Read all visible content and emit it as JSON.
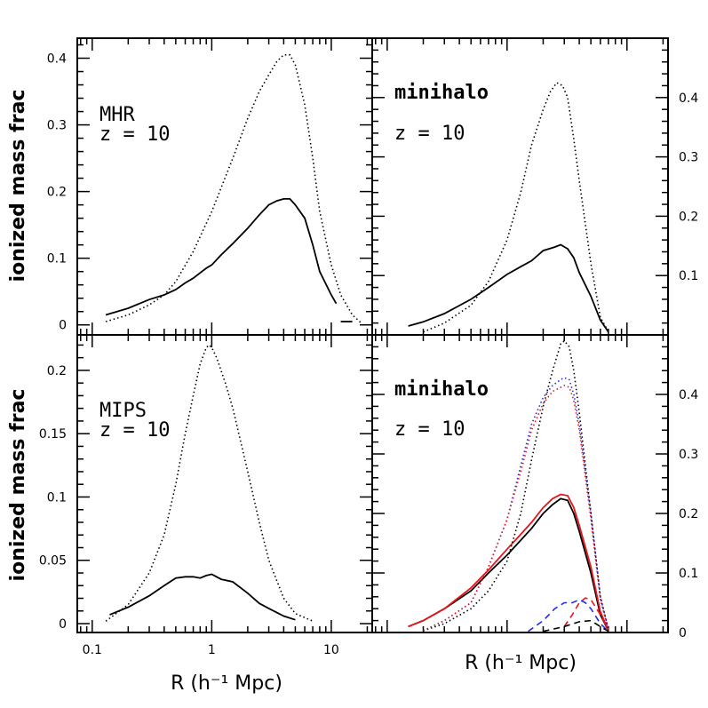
{
  "figure": {
    "ylabel_top": "ionized mass frac",
    "ylabel_bottom": "ionized mass frac",
    "xlabel_left": "R (h⁻¹ Mpc)",
    "xlabel_right": "R (h⁻¹ Mpc)"
  },
  "colors": {
    "black": "#000000",
    "red": "#e8141b",
    "blue": "#1f2be8"
  },
  "chart_data": [
    {
      "panel": "top-left",
      "type": "line",
      "label_line1": "MHR",
      "label_line2": "z = 10",
      "label_color": "#000000",
      "xscale": "log",
      "xlim": [
        0.075,
        22
      ],
      "ylim": [
        -0.015,
        0.43
      ],
      "yticks": [
        0,
        0.1,
        0.2,
        0.3,
        0.4
      ],
      "ytick_labels": [
        "0",
        "0.1",
        "0.2",
        "0.3",
        "0.4"
      ],
      "ytick_side": "left",
      "series": [
        {
          "style": "solid",
          "color": "#000000",
          "x": [
            0.13,
            0.2,
            0.3,
            0.4,
            0.5,
            0.6,
            0.7,
            0.8,
            0.9,
            1.0,
            1.2,
            1.5,
            2.0,
            2.5,
            3.0,
            3.5,
            4.0,
            4.5,
            5.0,
            6.0,
            7.0,
            8.0,
            10.0,
            11.0
          ],
          "y": [
            0.015,
            0.025,
            0.038,
            0.045,
            0.053,
            0.063,
            0.07,
            0.078,
            0.085,
            0.09,
            0.105,
            0.122,
            0.145,
            0.165,
            0.18,
            0.186,
            0.189,
            0.189,
            0.18,
            0.16,
            0.12,
            0.08,
            0.045,
            0.032
          ]
        },
        {
          "style": "solid",
          "color": "#000000",
          "x": [
            12.0,
            15.0
          ],
          "y": [
            0.005,
            0.005
          ]
        },
        {
          "style": "dotted",
          "color": "#000000",
          "x": [
            0.13,
            0.2,
            0.3,
            0.4,
            0.5,
            0.7,
            1.0,
            1.5,
            2.0,
            2.5,
            3.0,
            3.5,
            4.0,
            4.5,
            5.0,
            6.0,
            7.0,
            8.0,
            10.0,
            12.0,
            15.0,
            18.0
          ],
          "y": [
            0.005,
            0.015,
            0.03,
            0.045,
            0.065,
            0.11,
            0.17,
            0.25,
            0.31,
            0.35,
            0.375,
            0.395,
            0.405,
            0.405,
            0.39,
            0.33,
            0.25,
            0.17,
            0.09,
            0.045,
            0.015,
            0.002
          ]
        }
      ]
    },
    {
      "panel": "top-right",
      "type": "line",
      "label_line1": "minihalo",
      "label_line2": "z = 10",
      "label_color": "#000000",
      "xscale": "log",
      "xlim": [
        0.075,
        22
      ],
      "ylim": [
        0,
        0.5
      ],
      "yticks": [
        0.1,
        0.2,
        0.3,
        0.4
      ],
      "ytick_labels": [
        "0.1",
        "0.2",
        "0.3",
        "0.4"
      ],
      "ytick_side": "right",
      "series": [
        {
          "style": "solid",
          "color": "#000000",
          "x": [
            0.15,
            0.2,
            0.3,
            0.5,
            0.7,
            1.0,
            1.3,
            1.6,
            2.0,
            2.5,
            2.8,
            3.2,
            3.6,
            4.0,
            5.0,
            6.0,
            7.0
          ],
          "y": [
            0.015,
            0.022,
            0.036,
            0.06,
            0.08,
            0.102,
            0.115,
            0.125,
            0.142,
            0.148,
            0.152,
            0.145,
            0.13,
            0.105,
            0.065,
            0.025,
            0.005
          ]
        },
        {
          "style": "dotted",
          "color": "#000000",
          "x": [
            0.2,
            0.3,
            0.5,
            0.7,
            1.0,
            1.3,
            1.6,
            2.0,
            2.3,
            2.6,
            2.9,
            3.2,
            3.6,
            4.0,
            5.0,
            6.0,
            7.0
          ],
          "y": [
            0.005,
            0.02,
            0.05,
            0.09,
            0.16,
            0.24,
            0.32,
            0.38,
            0.41,
            0.425,
            0.42,
            0.4,
            0.33,
            0.26,
            0.12,
            0.03,
            0.005
          ]
        }
      ]
    },
    {
      "panel": "bottom-left",
      "type": "line",
      "label_line1": "MIPS",
      "label_line2": "z = 10",
      "label_color": "#000000",
      "xscale": "log",
      "xlim": [
        0.075,
        22
      ],
      "ylim": [
        -0.007,
        0.228
      ],
      "yticks": [
        0,
        0.05,
        0.1,
        0.15,
        0.2
      ],
      "ytick_labels": [
        "0",
        "0.05",
        "0.1",
        "0.15",
        "0.2"
      ],
      "ytick_side": "left",
      "xticks": [
        0.1,
        1,
        10
      ],
      "xtick_labels": [
        "0.1",
        "1",
        "10"
      ],
      "series": [
        {
          "style": "solid",
          "color": "#000000",
          "x": [
            0.14,
            0.2,
            0.3,
            0.4,
            0.5,
            0.6,
            0.7,
            0.8,
            0.9,
            1.0,
            1.2,
            1.5,
            2.0,
            2.5,
            3.0,
            4.0,
            5.0
          ],
          "y": [
            0.007,
            0.013,
            0.022,
            0.03,
            0.036,
            0.037,
            0.037,
            0.036,
            0.038,
            0.039,
            0.035,
            0.033,
            0.024,
            0.016,
            0.012,
            0.006,
            0.003
          ]
        },
        {
          "style": "dotted",
          "color": "#000000",
          "x": [
            0.13,
            0.2,
            0.3,
            0.4,
            0.5,
            0.6,
            0.7,
            0.8,
            0.9,
            0.95,
            1.0,
            1.1,
            1.3,
            1.5,
            2.0,
            2.5,
            3.0,
            4.0,
            5.0,
            7.0
          ],
          "y": [
            0.002,
            0.015,
            0.04,
            0.07,
            0.11,
            0.15,
            0.18,
            0.205,
            0.218,
            0.22,
            0.218,
            0.21,
            0.19,
            0.17,
            0.12,
            0.08,
            0.05,
            0.02,
            0.008,
            0.002
          ]
        }
      ]
    },
    {
      "panel": "bottom-right",
      "type": "line",
      "label_line1": "minihalo",
      "label_line2": "z = 10",
      "label_color": "#1f2be8",
      "xscale": "log",
      "xlim": [
        0.075,
        22
      ],
      "ylim": [
        0,
        0.5
      ],
      "yticks": [
        0,
        0.1,
        0.2,
        0.3,
        0.4
      ],
      "ytick_labels": [
        "0",
        "0.1",
        "0.2",
        "0.3",
        "0.4"
      ],
      "ytick_side": "right",
      "series": [
        {
          "style": "solid",
          "color": "#000000",
          "x": [
            0.15,
            0.2,
            0.3,
            0.5,
            0.7,
            1.0,
            1.3,
            1.6,
            2.0,
            2.4,
            2.8,
            3.2,
            3.6,
            4.0,
            5.0,
            6.0,
            7.0
          ],
          "y": [
            0.01,
            0.02,
            0.04,
            0.07,
            0.1,
            0.13,
            0.155,
            0.175,
            0.2,
            0.215,
            0.225,
            0.222,
            0.2,
            0.17,
            0.1,
            0.03,
            0.003
          ]
        },
        {
          "style": "solid",
          "color": "#e8141b",
          "x": [
            0.15,
            0.2,
            0.3,
            0.5,
            0.7,
            1.0,
            1.3,
            1.6,
            2.0,
            2.4,
            2.8,
            3.2,
            3.6,
            4.0,
            5.0,
            6.0,
            7.0
          ],
          "y": [
            0.01,
            0.02,
            0.04,
            0.075,
            0.105,
            0.14,
            0.165,
            0.185,
            0.21,
            0.225,
            0.232,
            0.23,
            0.21,
            0.18,
            0.11,
            0.035,
            0.003
          ]
        },
        {
          "style": "dotted",
          "color": "#000000",
          "x": [
            0.2,
            0.3,
            0.5,
            0.7,
            1.0,
            1.3,
            1.6,
            2.0,
            2.4,
            2.8,
            3.0,
            3.3,
            3.6,
            4.0,
            5.0,
            6.0,
            7.0
          ],
          "y": [
            0.003,
            0.015,
            0.04,
            0.07,
            0.12,
            0.2,
            0.29,
            0.38,
            0.44,
            0.485,
            0.49,
            0.48,
            0.44,
            0.37,
            0.2,
            0.06,
            0.005
          ]
        },
        {
          "style": "dotted",
          "color": "#1f2be8",
          "x": [
            0.2,
            0.3,
            0.5,
            0.7,
            1.0,
            1.3,
            1.6,
            2.0,
            2.4,
            2.8,
            3.0,
            3.3,
            3.6,
            4.0,
            5.0,
            6.0,
            7.0
          ],
          "y": [
            0.003,
            0.02,
            0.05,
            0.11,
            0.19,
            0.28,
            0.35,
            0.395,
            0.415,
            0.425,
            0.428,
            0.425,
            0.4,
            0.35,
            0.2,
            0.06,
            0.005
          ]
        },
        {
          "style": "dotted",
          "color": "#e8141b",
          "x": [
            0.2,
            0.3,
            0.5,
            0.7,
            1.0,
            1.3,
            1.6,
            2.0,
            2.4,
            2.8,
            3.0,
            3.3,
            3.6,
            4.0,
            5.0,
            6.0,
            7.0
          ],
          "y": [
            0.003,
            0.02,
            0.05,
            0.11,
            0.19,
            0.27,
            0.34,
            0.385,
            0.405,
            0.412,
            0.415,
            0.412,
            0.39,
            0.34,
            0.19,
            0.055,
            0.005
          ]
        },
        {
          "style": "dashed",
          "color": "#1f2be8",
          "x": [
            1.5,
            2.0,
            2.5,
            3.0,
            3.5,
            4.0,
            4.5,
            5.0,
            6.0,
            7.0
          ],
          "y": [
            0.002,
            0.02,
            0.04,
            0.05,
            0.05,
            0.055,
            0.05,
            0.04,
            0.015,
            0.002
          ]
        },
        {
          "style": "dashed",
          "color": "#e8141b",
          "x": [
            3.0,
            3.5,
            4.0,
            4.5,
            5.0,
            6.0,
            7.0
          ],
          "y": [
            0.01,
            0.03,
            0.05,
            0.058,
            0.055,
            0.03,
            0.005
          ]
        },
        {
          "style": "dashed",
          "color": "#000000",
          "x": [
            2.0,
            3.0,
            4.0,
            5.0,
            6.0,
            7.0
          ],
          "y": [
            0.002,
            0.01,
            0.018,
            0.02,
            0.01,
            0.002
          ]
        }
      ]
    }
  ]
}
